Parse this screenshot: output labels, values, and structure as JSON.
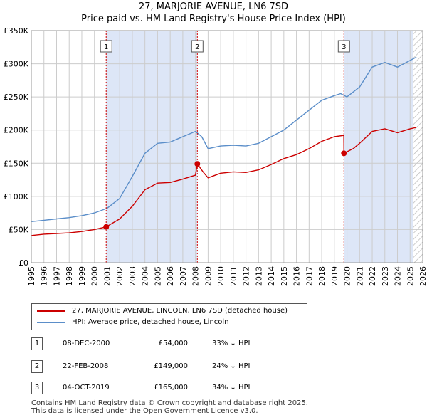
{
  "title": {
    "line1": "27, MARJORIE AVENUE, LN6 7SD",
    "line2": "Price paid vs. HM Land Registry's House Price Index (HPI)"
  },
  "colors": {
    "property": "#cc0000",
    "hpi": "#5b8ec9",
    "shade": "#dde6f7",
    "grid": "#cccccc"
  },
  "legend": {
    "property_label": "27, MARJORIE AVENUE, LINCOLN, LN6 7SD (detached house)",
    "hpi_label": "HPI: Average price, detached house, Lincoln"
  },
  "transactions": [
    {
      "num": "1",
      "date": "08-DEC-2000",
      "price": "£54,000",
      "hpi": "33% ↓ HPI"
    },
    {
      "num": "2",
      "date": "22-FEB-2008",
      "price": "£149,000",
      "hpi": "24% ↓ HPI"
    },
    {
      "num": "3",
      "date": "04-OCT-2019",
      "price": "£165,000",
      "hpi": "34% ↓ HPI"
    }
  ],
  "footer": {
    "line1": "Contains HM Land Registry data © Crown copyright and database right 2025.",
    "line2": "This data is licensed under the Open Government Licence v3.0."
  },
  "chart_data": {
    "type": "line",
    "xlim": [
      1995,
      2026
    ],
    "ylim": [
      0,
      350000
    ],
    "y_ticks": [
      {
        "value": 0,
        "label": "£0"
      },
      {
        "value": 50000,
        "label": "£50K"
      },
      {
        "value": 100000,
        "label": "£100K"
      },
      {
        "value": 150000,
        "label": "£150K"
      },
      {
        "value": 200000,
        "label": "£200K"
      },
      {
        "value": 250000,
        "label": "£250K"
      },
      {
        "value": 300000,
        "label": "£300K"
      },
      {
        "value": 350000,
        "label": "£350K"
      }
    ],
    "x_ticks": [
      "1995",
      "1996",
      "1997",
      "1998",
      "1999",
      "2000",
      "2001",
      "2002",
      "2003",
      "2004",
      "2005",
      "2006",
      "2007",
      "2008",
      "2009",
      "2010",
      "2011",
      "2012",
      "2013",
      "2014",
      "2015",
      "2016",
      "2017",
      "2018",
      "2019",
      "2020",
      "2021",
      "2022",
      "2023",
      "2024",
      "2025",
      "2026"
    ],
    "shaded_ranges": [
      [
        2000.93,
        2008.15
      ],
      [
        2019.76,
        2025.25
      ]
    ],
    "hatched_from": 2025.25,
    "sales": [
      {
        "label": "1",
        "x": 2000.93,
        "y": 54000
      },
      {
        "label": "2",
        "x": 2008.15,
        "y": 149000
      },
      {
        "label": "3",
        "x": 2019.76,
        "y": 165000
      }
    ],
    "series": [
      {
        "name": "HPI: Average price, detached house, Lincoln",
        "x": [
          1995,
          1996,
          1997,
          1998,
          1999,
          2000,
          2001,
          2002,
          2003,
          2004,
          2005,
          2006,
          2007,
          2008,
          2008.5,
          2009,
          2010,
          2011,
          2012,
          2013,
          2014,
          2015,
          2016,
          2017,
          2018,
          2019,
          2019.5,
          2020,
          2021,
          2022,
          2023,
          2024,
          2025,
          2025.5
        ],
        "y": [
          62000,
          64000,
          66000,
          68000,
          71000,
          75000,
          82000,
          97000,
          130000,
          165000,
          180000,
          182000,
          190000,
          198000,
          190000,
          172000,
          176000,
          177000,
          176000,
          180000,
          190000,
          200000,
          215000,
          230000,
          245000,
          252000,
          255000,
          250000,
          265000,
          295000,
          302000,
          295000,
          305000,
          310000
        ]
      },
      {
        "name": "27, MARJORIE AVENUE, LINCOLN, LN6 7SD (detached house)",
        "x": [
          1995,
          1996,
          1997,
          1998,
          1999,
          2000,
          2000.93,
          2002,
          2003,
          2004,
          2005,
          2006,
          2007,
          2008,
          2008.15,
          2008.6,
          2009,
          2010,
          2011,
          2012,
          2013,
          2014,
          2015,
          2016,
          2017,
          2018,
          2019,
          2019.75,
          2019.76,
          2020.5,
          2021,
          2022,
          2023,
          2024,
          2025,
          2025.5
        ],
        "y": [
          41000,
          43000,
          44000,
          45000,
          47000,
          50000,
          54000,
          66000,
          85000,
          110000,
          120000,
          121000,
          126000,
          132000,
          149000,
          137000,
          128000,
          135000,
          137000,
          136000,
          140000,
          148000,
          157000,
          163000,
          172000,
          183000,
          190000,
          192000,
          165000,
          172000,
          180000,
          198000,
          202000,
          196000,
          202000,
          204000
        ]
      }
    ]
  }
}
